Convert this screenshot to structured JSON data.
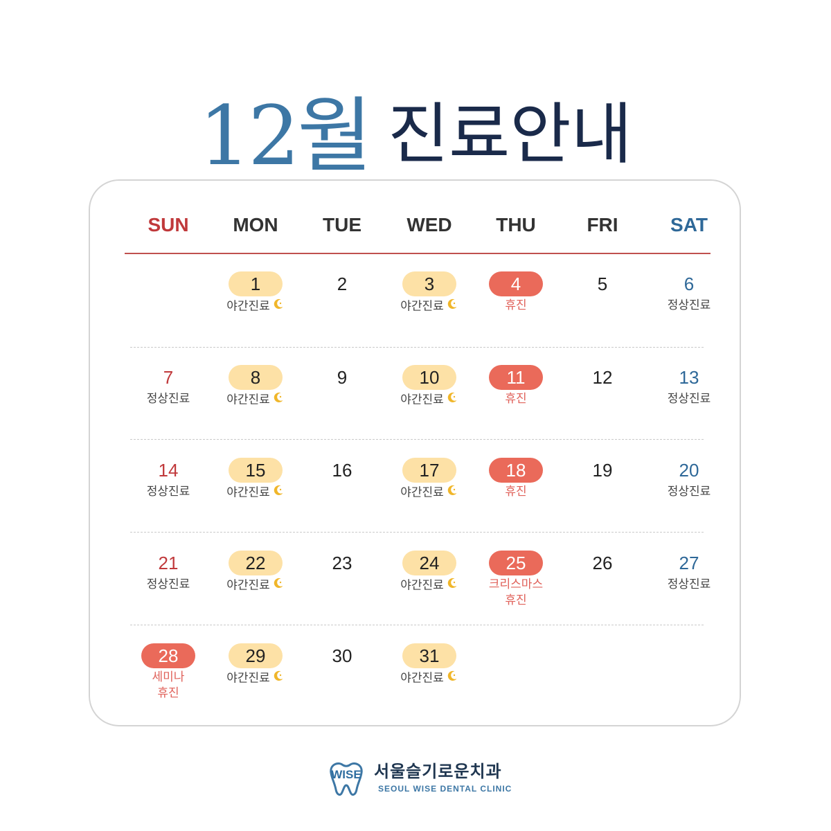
{
  "title": {
    "month": "12월",
    "rest": "진료안내"
  },
  "weekdays": [
    "SUN",
    "MON",
    "TUE",
    "WED",
    "THU",
    "FRI",
    "SAT"
  ],
  "colors": {
    "sunday": "#c0393b",
    "saturday": "#2e6898",
    "weekday": "#333333",
    "night_pill": "#fde1a6",
    "closed_pill": "#ea6a5a",
    "closed_text": "#e0615a",
    "title_month": "#3d77a5",
    "title_rest": "#1a2a4a",
    "head_line": "#c0504e"
  },
  "weeks": [
    [
      null,
      {
        "day": "1",
        "style": "night",
        "note": [
          "야간진료"
        ],
        "icon": "moon-icon"
      },
      {
        "day": "2",
        "style": "plain"
      },
      {
        "day": "3",
        "style": "night",
        "note": [
          "야간진료"
        ],
        "icon": "moon-icon"
      },
      {
        "day": "4",
        "style": "closed",
        "note": [
          "휴진"
        ]
      },
      {
        "day": "5",
        "style": "plain"
      },
      {
        "day": "6",
        "style": "sat",
        "note": [
          "정상진료"
        ]
      }
    ],
    [
      {
        "day": "7",
        "style": "sun",
        "note": [
          "정상진료"
        ]
      },
      {
        "day": "8",
        "style": "night",
        "note": [
          "야간진료"
        ],
        "icon": "moon-icon"
      },
      {
        "day": "9",
        "style": "plain"
      },
      {
        "day": "10",
        "style": "night",
        "note": [
          "야간진료"
        ],
        "icon": "moon-icon"
      },
      {
        "day": "11",
        "style": "closed",
        "note": [
          "휴진"
        ]
      },
      {
        "day": "12",
        "style": "plain"
      },
      {
        "day": "13",
        "style": "sat",
        "note": [
          "정상진료"
        ]
      }
    ],
    [
      {
        "day": "14",
        "style": "sun",
        "note": [
          "정상진료"
        ]
      },
      {
        "day": "15",
        "style": "night",
        "note": [
          "야간진료"
        ],
        "icon": "moon-icon"
      },
      {
        "day": "16",
        "style": "plain"
      },
      {
        "day": "17",
        "style": "night",
        "note": [
          "야간진료"
        ],
        "icon": "moon-icon"
      },
      {
        "day": "18",
        "style": "closed",
        "note": [
          "휴진"
        ]
      },
      {
        "day": "19",
        "style": "plain"
      },
      {
        "day": "20",
        "style": "sat",
        "note": [
          "정상진료"
        ]
      }
    ],
    [
      {
        "day": "21",
        "style": "sun",
        "note": [
          "정상진료"
        ]
      },
      {
        "day": "22",
        "style": "night",
        "note": [
          "야간진료"
        ],
        "icon": "moon-icon"
      },
      {
        "day": "23",
        "style": "plain"
      },
      {
        "day": "24",
        "style": "night",
        "note": [
          "야간진료"
        ],
        "icon": "moon-icon"
      },
      {
        "day": "25",
        "style": "closed",
        "note": [
          "크리스마스",
          "휴진"
        ]
      },
      {
        "day": "26",
        "style": "plain"
      },
      {
        "day": "27",
        "style": "sat",
        "note": [
          "정상진료"
        ]
      }
    ],
    [
      {
        "day": "28",
        "style": "closed",
        "note": [
          "세미나",
          "휴진"
        ]
      },
      {
        "day": "29",
        "style": "night",
        "note": [
          "야간진료"
        ],
        "icon": "moon-icon"
      },
      {
        "day": "30",
        "style": "plain"
      },
      {
        "day": "31",
        "style": "night",
        "note": [
          "야간진료"
        ],
        "icon": "moon-icon"
      },
      null,
      null,
      null
    ]
  ],
  "footer": {
    "logo_text": "WISE",
    "name_ko": "서울슬기로운치과",
    "name_en": "SEOUL WISE DENTAL CLINIC",
    "logo_icon": "tooth-logo-icon"
  }
}
